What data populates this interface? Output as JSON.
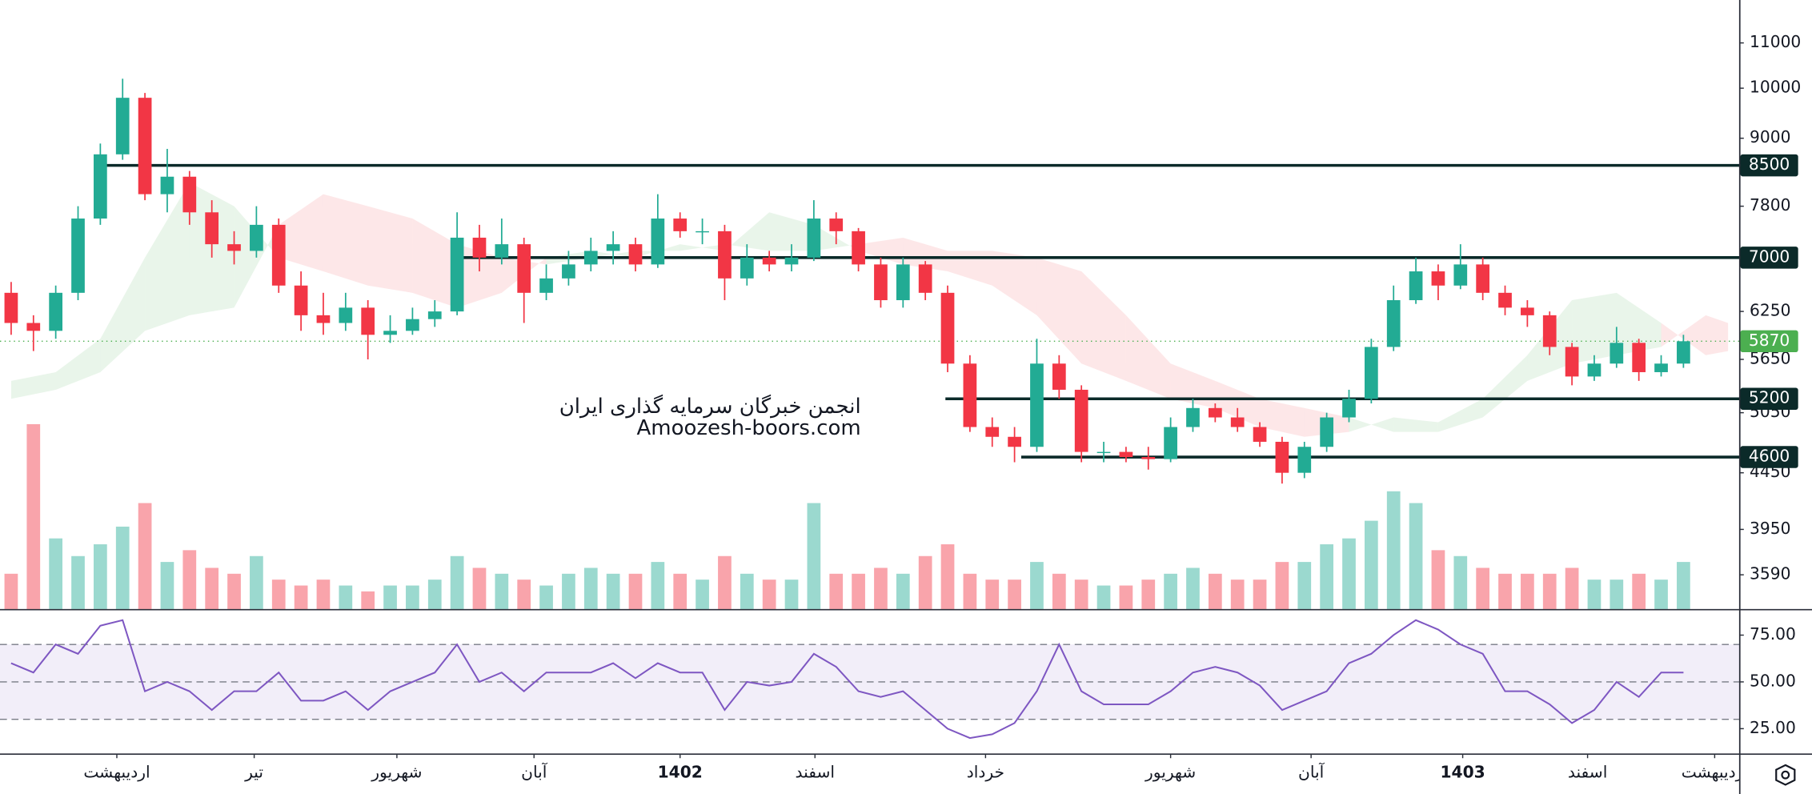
{
  "chart_data": {
    "type": "candlestick",
    "xlim": [
      -0.5,
      77.5
    ],
    "ylim": [
      3340,
      12040
    ],
    "log_scale": true,
    "yticks": [
      11000,
      10000,
      9000,
      7800,
      6250,
      5650,
      5050,
      4450,
      3950,
      3590
    ],
    "xticks": [
      {
        "value": 4.74,
        "label": "اردیبهشت"
      },
      {
        "value": 10.9,
        "label": "تیر"
      },
      {
        "value": 17.3,
        "label": "شهریور"
      },
      {
        "value": 23.45,
        "label": "آبان"
      },
      {
        "value": 30,
        "label": "1402",
        "bold": true
      },
      {
        "value": 36.05,
        "label": "اسفند"
      },
      {
        "value": 43.7,
        "label": "خرداد"
      },
      {
        "value": 52,
        "label": "شهریور"
      },
      {
        "value": 58.3,
        "label": "آبان"
      },
      {
        "value": 65.1,
        "label": "1403",
        "bold": true
      },
      {
        "value": 70.7,
        "label": "اسفند"
      },
      {
        "value": 76.4,
        "label": "اردیبهشت"
      }
    ],
    "colors": {
      "up": "#22ab94",
      "down": "#f23645",
      "level": "#0b2a29",
      "last": "#4caf50"
    },
    "candles": {
      "open": [
        6500,
        6100,
        6000,
        6500,
        7600,
        8700,
        9800,
        8000,
        8300,
        7700,
        7200,
        7100,
        7500,
        6600,
        6200,
        6100,
        6300,
        5950,
        6000,
        6150,
        6250,
        7300,
        7000,
        7200,
        6500,
        6700,
        6900,
        7100,
        7200,
        6900,
        7600,
        7400,
        7400,
        6700,
        7000,
        6900,
        7000,
        7600,
        7400,
        6900,
        6400,
        6900,
        6500,
        5600,
        4900,
        4800,
        4700,
        5600,
        5300,
        4650,
        4650,
        4600,
        4580,
        4900,
        5100,
        5000,
        4900,
        4750,
        4450,
        4700,
        5000,
        5200,
        5800,
        6400,
        6800,
        6600,
        6900,
        6500,
        6300,
        6200,
        5800,
        5450,
        5600,
        5850,
        5500,
        5600
      ],
      "high": [
        6650,
        6200,
        6600,
        7800,
        8900,
        10200,
        9900,
        8800,
        8400,
        7900,
        7400,
        7800,
        7600,
        6800,
        6500,
        6500,
        6400,
        6200,
        6300,
        6400,
        7700,
        7500,
        7600,
        7300,
        6900,
        7100,
        7300,
        7400,
        7300,
        8000,
        7700,
        7600,
        7500,
        7200,
        7100,
        7200,
        7900,
        7700,
        7450,
        7000,
        7000,
        6950,
        6600,
        5700,
        5000,
        4900,
        5900,
        5700,
        5350,
        4750,
        4700,
        4700,
        5000,
        5200,
        5150,
        5100,
        4950,
        4800,
        4750,
        5050,
        5300,
        5900,
        6600,
        7000,
        6900,
        7200,
        7000,
        6600,
        6400,
        6250,
        5850,
        5700,
        6050,
        5900,
        5700,
        5950
      ],
      "low": [
        5950,
        5750,
        5900,
        6400,
        7500,
        8600,
        7900,
        7700,
        7500,
        7000,
        6900,
        7000,
        6500,
        6000,
        5950,
        6000,
        5650,
        5850,
        5950,
        6050,
        6200,
        6800,
        6900,
        6100,
        6400,
        6600,
        6800,
        6900,
        6800,
        6850,
        7300,
        7200,
        6400,
        6600,
        6800,
        6800,
        6950,
        7200,
        6800,
        6300,
        6300,
        6400,
        5500,
        4850,
        4700,
        4550,
        4650,
        5200,
        4550,
        4550,
        4550,
        4480,
        4550,
        4850,
        4950,
        4850,
        4700,
        4350,
        4400,
        4650,
        4950,
        5150,
        5750,
        6350,
        6400,
        6550,
        6400,
        6200,
        6050,
        5700,
        5350,
        5400,
        5550,
        5400,
        5450,
        5550
      ],
      "close": [
        6100,
        6000,
        6500,
        7600,
        8700,
        9800,
        8000,
        8300,
        7700,
        7200,
        7100,
        7500,
        6600,
        6200,
        6100,
        6300,
        5950,
        6000,
        6150,
        6250,
        7300,
        7000,
        7200,
        6500,
        6700,
        6900,
        7100,
        7200,
        6900,
        7600,
        7400,
        7400,
        6700,
        7000,
        6900,
        7000,
        7600,
        7400,
        6900,
        6400,
        6900,
        6500,
        5600,
        4900,
        4800,
        4700,
        5600,
        5300,
        4650,
        4650,
        4600,
        4580,
        4900,
        5100,
        5000,
        4900,
        4750,
        4450,
        4700,
        5000,
        5200,
        5800,
        6400,
        6800,
        6600,
        6900,
        6500,
        6300,
        6200,
        5800,
        5450,
        5600,
        5850,
        5500,
        5600,
        5870
      ]
    },
    "volume": [
      30,
      157,
      60,
      45,
      55,
      70,
      90,
      40,
      50,
      35,
      30,
      45,
      25,
      20,
      25,
      20,
      15,
      20,
      20,
      25,
      45,
      35,
      30,
      25,
      20,
      30,
      35,
      30,
      30,
      40,
      30,
      25,
      45,
      30,
      25,
      25,
      90,
      30,
      30,
      35,
      30,
      45,
      55,
      30,
      25,
      25,
      40,
      30,
      25,
      20,
      20,
      25,
      30,
      35,
      30,
      25,
      25,
      40,
      40,
      55,
      60,
      75,
      100,
      90,
      50,
      45,
      35,
      30,
      30,
      30,
      35,
      25,
      25,
      30,
      25,
      40
    ],
    "cloud": {
      "x": [
        0,
        2,
        4,
        6,
        8,
        10,
        12,
        14,
        16,
        18,
        20,
        22,
        24,
        26,
        28,
        30,
        32,
        34,
        36,
        38,
        40,
        42,
        44,
        46,
        48,
        50,
        52,
        54,
        56,
        58,
        60,
        62,
        64,
        66,
        68,
        70,
        72,
        74,
        76,
        77
      ],
      "span_a": [
        5400,
        5500,
        5900,
        7000,
        8200,
        7800,
        7000,
        6800,
        6600,
        6500,
        6300,
        6500,
        7000,
        7100,
        7000,
        7200,
        7100,
        7700,
        7500,
        7100,
        6900,
        6800,
        6600,
        6200,
        5600,
        5400,
        5200,
        5100,
        4900,
        4800,
        4850,
        5000,
        4950,
        5200,
        5700,
        6400,
        6500,
        6100,
        5700,
        5750
      ],
      "span_b": [
        5200,
        5300,
        5500,
        6000,
        6200,
        6300,
        7500,
        8000,
        7800,
        7600,
        7200,
        7000,
        6900,
        7000,
        7100,
        7100,
        7200,
        7100,
        7100,
        7200,
        7300,
        7100,
        7100,
        7000,
        6800,
        6200,
        5600,
        5400,
        5200,
        5100,
        5000,
        4850,
        4850,
        5000,
        5400,
        5600,
        5700,
        5800,
        6200,
        6100
      ]
    },
    "levels": [
      {
        "value": 8500,
        "from": 3.8
      },
      {
        "value": 7000,
        "from": 20
      },
      {
        "value": 5200,
        "from": 41.9
      },
      {
        "value": 4600,
        "from": 45.3
      }
    ],
    "rsi": {
      "color": "#7e57c2",
      "ylim": [
        11.7,
        88.3
      ],
      "yticks": [
        {
          "value": 75,
          "label": "75.00"
        },
        {
          "value": 50,
          "label": "50.00"
        },
        {
          "value": 25,
          "label": "25.00"
        }
      ],
      "band": [
        30,
        70
      ],
      "mid": 50,
      "values": [
        60,
        55,
        70,
        65,
        80,
        83,
        45,
        50,
        45,
        35,
        45,
        45,
        55,
        40,
        40,
        45,
        35,
        45,
        50,
        55,
        70,
        50,
        55,
        45,
        55,
        55,
        55,
        60,
        52,
        60,
        55,
        55,
        35,
        50,
        48,
        50,
        65,
        58,
        45,
        42,
        45,
        35,
        25,
        20,
        22,
        28,
        45,
        70,
        45,
        38,
        38,
        38,
        45,
        55,
        58,
        55,
        48,
        35,
        40,
        45,
        60,
        65,
        75,
        83,
        78,
        70,
        65,
        45,
        45,
        38,
        28,
        35,
        50,
        42,
        55,
        55
      ]
    },
    "watermark": [
      "انجمن خبرگان سرمایه گذاری ایران",
      "Amoozesh-boors.com"
    ]
  }
}
